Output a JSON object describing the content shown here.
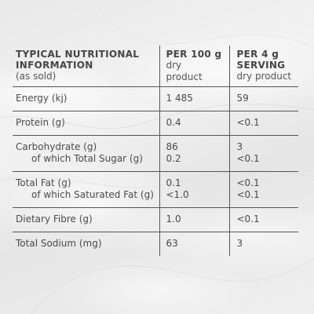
{
  "colors": {
    "text": "#444444",
    "rule": "#555555",
    "background": "#ebebeb"
  },
  "header": {
    "col1_title_line1": "TYPICAL NUTRITIONAL",
    "col1_title_line2": "INFORMATION",
    "col1_sub": "(as sold)",
    "col2_title": "PER 100 g",
    "col2_sub_line1": "dry",
    "col2_sub_line2": "product",
    "col3_title_line1": "PER 4 g",
    "col3_title_line2": "SERVING",
    "col3_sub": "dry product"
  },
  "rows": [
    {
      "label": "Energy (kj)",
      "per100": "1 485",
      "perServing": "59"
    },
    {
      "label": "Protein (g)",
      "per100": "0.4",
      "perServing": "<0.1"
    },
    {
      "label": "Carbohydrate (g)",
      "per100": "86",
      "perServing": "3",
      "sub_label": "of which Total Sugar (g)",
      "sub_per100": "0.2",
      "sub_perServing": "<0.1"
    },
    {
      "label": "Total Fat (g)",
      "per100": "0.1",
      "perServing": "<0.1",
      "sub_label": "of which Saturated Fat (g)",
      "sub_per100": "<1.0",
      "sub_perServing": "<0.1"
    },
    {
      "label": "Dietary Fibre (g)",
      "per100": "1.0",
      "perServing": "<0.1"
    },
    {
      "label": "Total Sodium (mg)",
      "per100": "63",
      "perServing": "3"
    }
  ]
}
